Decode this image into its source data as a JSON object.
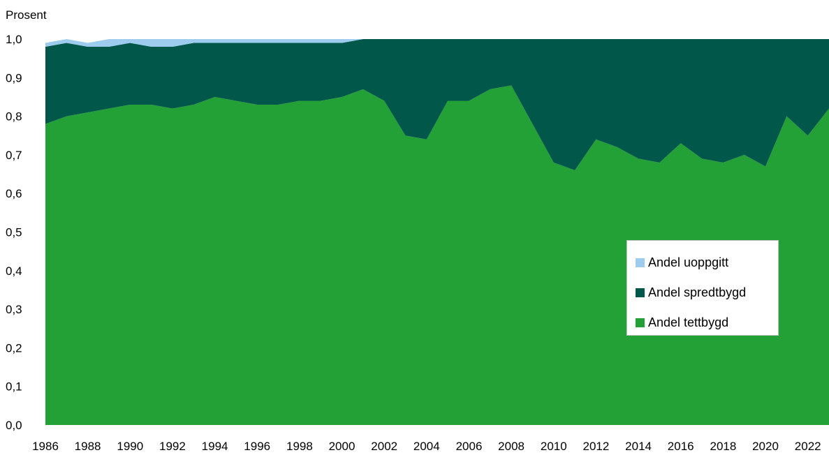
{
  "chart_data": {
    "type": "area",
    "stacked": true,
    "ylabel": "Prosent",
    "ylim": [
      0,
      1
    ],
    "yticks": [
      "0,0",
      "0,1",
      "0,2",
      "0,3",
      "0,4",
      "0,5",
      "0,6",
      "0,7",
      "0,8",
      "0,9",
      "1,0"
    ],
    "x": [
      1986,
      1987,
      1988,
      1989,
      1990,
      1991,
      1992,
      1993,
      1994,
      1995,
      1996,
      1997,
      1998,
      1999,
      2000,
      2001,
      2002,
      2003,
      2004,
      2005,
      2006,
      2007,
      2008,
      2009,
      2010,
      2011,
      2012,
      2013,
      2014,
      2015,
      2016,
      2017,
      2018,
      2019,
      2020,
      2021,
      2022,
      2023
    ],
    "xticks": [
      "1986",
      "1988",
      "1990",
      "1992",
      "1994",
      "1996",
      "1998",
      "2000",
      "2002",
      "2004",
      "2006",
      "2008",
      "2010",
      "2012",
      "2014",
      "2016",
      "2018",
      "2020",
      "2022"
    ],
    "series": [
      {
        "name": "Andel tettbygd",
        "color": "#23a036",
        "values": [
          0.78,
          0.8,
          0.81,
          0.82,
          0.83,
          0.83,
          0.82,
          0.83,
          0.85,
          0.84,
          0.83,
          0.83,
          0.84,
          0.84,
          0.85,
          0.87,
          0.84,
          0.75,
          0.74,
          0.84,
          0.84,
          0.87,
          0.88,
          0.78,
          0.68,
          0.66,
          0.74,
          0.72,
          0.69,
          0.68,
          0.73,
          0.69,
          0.68,
          0.7,
          0.67,
          0.8,
          0.75,
          0.82
        ]
      },
      {
        "name": "Andel spredtbygd",
        "color": "#00574a",
        "values": [
          0.2,
          0.19,
          0.17,
          0.16,
          0.16,
          0.15,
          0.16,
          0.16,
          0.14,
          0.15,
          0.16,
          0.16,
          0.15,
          0.15,
          0.14,
          0.13,
          0.16,
          0.25,
          0.26,
          0.16,
          0.16,
          0.13,
          0.12,
          0.22,
          0.32,
          0.34,
          0.26,
          0.28,
          0.31,
          0.32,
          0.27,
          0.31,
          0.32,
          0.3,
          0.33,
          0.2,
          0.25,
          0.18
        ]
      },
      {
        "name": "Andel uoppgitt",
        "color": "#9dccee",
        "values": [
          0.01,
          0.01,
          0.01,
          0.02,
          0.01,
          0.02,
          0.02,
          0.01,
          0.01,
          0.01,
          0.01,
          0.01,
          0.01,
          0.01,
          0.01,
          0.0,
          0.0,
          0.0,
          0.0,
          0.0,
          0.0,
          0.0,
          0.0,
          0.0,
          0.0,
          0.0,
          0.0,
          0.0,
          0.0,
          0.0,
          0.0,
          0.0,
          0.0,
          0.0,
          0.0,
          0.0,
          0.0,
          0.0
        ]
      }
    ],
    "legend": {
      "position": "right",
      "order": [
        "Andel uoppgitt",
        "Andel spredtbygd",
        "Andel tettbygd"
      ]
    },
    "grid": false
  }
}
